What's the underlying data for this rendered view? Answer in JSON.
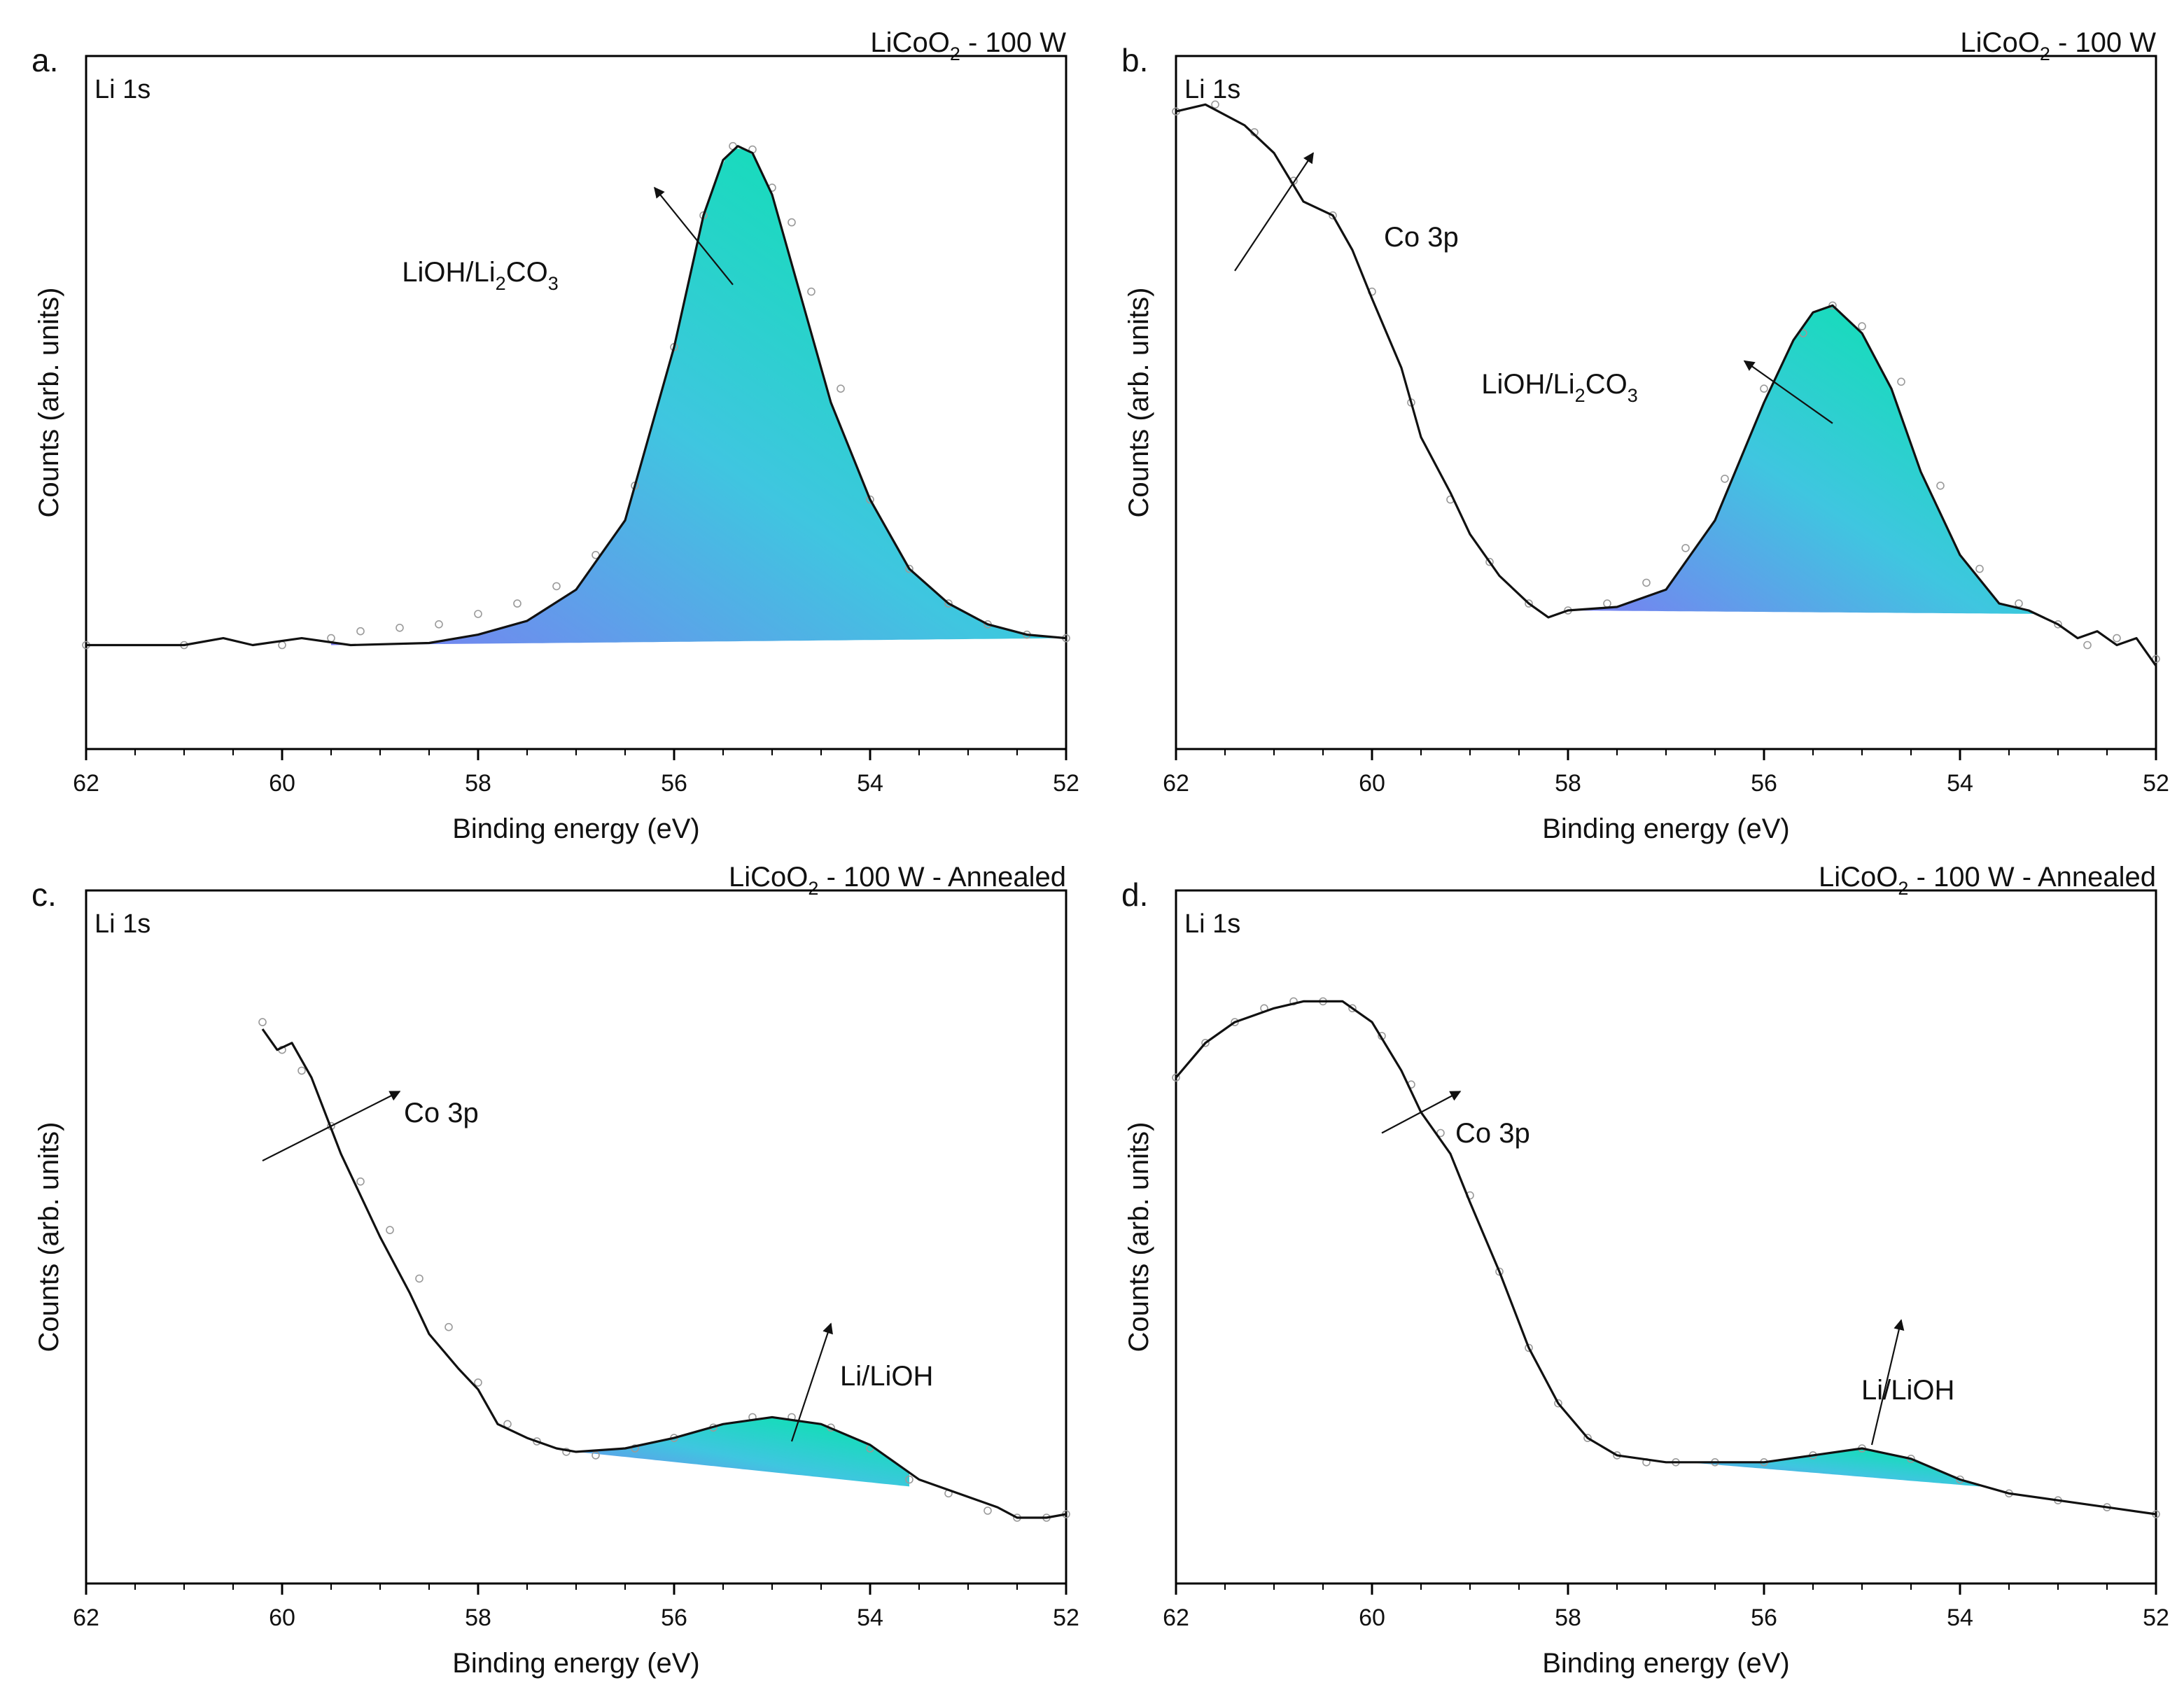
{
  "chart_data": [
    {
      "type": "line",
      "panel_label": "a.",
      "title": {
        "main": "LiCoO",
        "sub": "2",
        "suffix": " - 100 W"
      },
      "corner_label": "Li 1s",
      "xlabel": "Binding energy (eV)",
      "ylabel": "Counts (arb. units)",
      "xlim": [
        62,
        52
      ],
      "ylim": [
        0,
        100
      ],
      "x_ticks": [
        "62",
        "60",
        "58",
        "56",
        "54",
        "52"
      ],
      "envelope": {
        "x": [
          62,
          61,
          60.6,
          60.3,
          59.8,
          59.3,
          58.5,
          58,
          57.5,
          57,
          56.5,
          56,
          55.7,
          55.5,
          55.35,
          55.2,
          55,
          54.7,
          54.4,
          54,
          53.6,
          53.2,
          52.8,
          52.4,
          52
        ],
        "y": [
          15,
          15,
          16,
          15,
          16,
          15,
          15.3,
          16.5,
          18.5,
          23,
          33,
          58,
          77,
          85,
          87,
          86,
          80,
          65,
          50,
          36,
          26,
          21,
          18,
          16.5,
          16
        ]
      },
      "fill_base": {
        "x": [
          59.5,
          52
        ],
        "y": [
          15,
          16
        ]
      },
      "measured_points": {
        "x": [
          62,
          61,
          60,
          59.5,
          59.2,
          58.8,
          58.4,
          58,
          57.6,
          57.2,
          56.8,
          56.4,
          56,
          55.7,
          55.4,
          55.2,
          55,
          54.8,
          54.6,
          54.3,
          54,
          53.6,
          53.2,
          52.8,
          52.4,
          52
        ],
        "y": [
          15,
          15,
          15,
          16,
          17,
          17.5,
          18,
          19.5,
          21,
          23.5,
          28,
          38,
          58,
          77,
          87,
          86.5,
          81,
          76,
          66,
          52,
          36,
          26,
          21,
          18,
          16.5,
          16
        ]
      },
      "annotations": [
        {
          "text": {
            "main": "LiOH/Li",
            "sub": "2",
            "suffix": "CO",
            "sub2": "3"
          },
          "tip": [
            56.2,
            81
          ],
          "tail": [
            55.4,
            67
          ]
        }
      ]
    },
    {
      "type": "line",
      "panel_label": "b.",
      "title": {
        "main": "LiCoO",
        "sub": "2",
        "suffix": " - 100 W"
      },
      "corner_label": "Li 1s",
      "xlabel": "Binding energy (eV)",
      "ylabel": "Counts (arb. units)",
      "xlim": [
        62,
        52
      ],
      "ylim": [
        0,
        100
      ],
      "x_ticks": [
        "62",
        "60",
        "58",
        "56",
        "54",
        "52"
      ],
      "envelope": {
        "x": [
          62,
          61.7,
          61.3,
          61,
          60.7,
          60.4,
          60.2,
          60,
          59.7,
          59.5,
          59.2,
          59,
          58.7,
          58.4,
          58.2,
          58,
          57.5,
          57,
          56.5,
          56,
          55.7,
          55.5,
          55.3,
          55,
          54.7,
          54.4,
          54,
          53.6,
          53.3,
          53,
          52.8,
          52.6,
          52.4,
          52.2,
          52
        ],
        "y": [
          92,
          93,
          90,
          86,
          79,
          77,
          72,
          65,
          55,
          45,
          37,
          31,
          25,
          21,
          19,
          20,
          20.5,
          23,
          33,
          50,
          59,
          63,
          64,
          60,
          52,
          40,
          28,
          21,
          20,
          18,
          16,
          17,
          15,
          16,
          12
        ]
      },
      "fill_base": {
        "x": [
          58,
          53.2
        ],
        "y": [
          20,
          19.5
        ]
      },
      "measured_points": {
        "x": [
          62,
          61.6,
          61.2,
          60.8,
          60.4,
          60,
          59.6,
          59.2,
          58.8,
          58.4,
          58,
          57.6,
          57.2,
          56.8,
          56.4,
          56,
          55.6,
          55.3,
          55,
          54.6,
          54.2,
          53.8,
          53.4,
          53,
          52.7,
          52.4,
          52
        ],
        "y": [
          92,
          93,
          89,
          82,
          77,
          66,
          50,
          36,
          27,
          21,
          20,
          21,
          24,
          29,
          39,
          52,
          60,
          64,
          61,
          53,
          38,
          26,
          21,
          18,
          15,
          16,
          13
        ]
      },
      "annotations": [
        {
          "text": {
            "main": "Co 3p"
          },
          "tip": [
            60.6,
            86
          ],
          "tail": [
            61.4,
            69
          ]
        },
        {
          "text": {
            "main": "LiOH/Li",
            "sub": "2",
            "suffix": "CO",
            "sub2": "3"
          },
          "tip": [
            56.2,
            56
          ],
          "tail": [
            55.3,
            47
          ]
        }
      ]
    },
    {
      "type": "line",
      "panel_label": "c.",
      "title": {
        "main": "LiCoO",
        "sub": "2",
        "suffix": " - 100 W - Annealed"
      },
      "corner_label": "Li 1s",
      "xlabel": "Binding energy (eV)",
      "ylabel": "Counts (arb. units)",
      "xlim": [
        62,
        52
      ],
      "ylim": [
        0,
        100
      ],
      "x_ticks": [
        "62",
        "60",
        "58",
        "56",
        "54",
        "52"
      ],
      "envelope": {
        "x": [
          60.2,
          60.05,
          59.9,
          59.7,
          59.4,
          59,
          58.7,
          58.5,
          58.2,
          58,
          57.8,
          57.5,
          57.2,
          57,
          56.5,
          56,
          55.5,
          55,
          54.5,
          54,
          53.5,
          53,
          52.7,
          52.5,
          52.2,
          52
        ],
        "y": [
          80,
          77,
          78,
          73,
          62,
          50,
          42,
          36,
          31,
          28,
          23,
          21,
          19.5,
          19,
          19.5,
          21,
          23,
          24,
          23,
          20,
          15,
          12.5,
          11,
          9.5,
          9.5,
          10
        ]
      },
      "fill_base": {
        "x": [
          57,
          53.6
        ],
        "y": [
          19,
          14
        ]
      },
      "measured_points": {
        "x": [
          60.2,
          60,
          59.8,
          59.5,
          59.2,
          58.9,
          58.6,
          58.3,
          58,
          57.7,
          57.4,
          57.1,
          56.8,
          56.4,
          56,
          55.6,
          55.2,
          54.8,
          54.4,
          54,
          53.6,
          53.2,
          52.8,
          52.5,
          52.2,
          52
        ],
        "y": [
          81,
          77,
          74,
          66,
          58,
          51,
          44,
          37,
          29,
          23,
          20.5,
          19,
          18.5,
          19.5,
          21,
          22.5,
          24,
          24,
          22.5,
          19.5,
          15,
          13,
          10.5,
          9.5,
          9.5,
          10
        ]
      },
      "annotations": [
        {
          "text": {
            "main": "Co 3p"
          },
          "tip": [
            58.8,
            71
          ],
          "tail": [
            60.2,
            61
          ]
        },
        {
          "text": {
            "main": "Li/LiOH"
          },
          "tip": [
            54.4,
            37.5
          ],
          "tail": [
            54.8,
            20.5
          ]
        }
      ]
    },
    {
      "type": "line",
      "panel_label": "d.",
      "title": {
        "main": "LiCoO",
        "sub": "2",
        "suffix": " - 100 W - Annealed"
      },
      "corner_label": "Li 1s",
      "xlabel": "Binding energy (eV)",
      "ylabel": "Counts (arb. units)",
      "xlim": [
        62,
        52
      ],
      "ylim": [
        0,
        100
      ],
      "x_ticks": [
        "62",
        "60",
        "58",
        "56",
        "54",
        "52"
      ],
      "envelope": {
        "x": [
          62,
          61.7,
          61.4,
          61,
          60.7,
          60.3,
          60,
          59.7,
          59.5,
          59.2,
          59,
          58.7,
          58.4,
          58.1,
          57.8,
          57.5,
          57,
          56.5,
          56,
          55.5,
          55,
          54.5,
          54,
          53.5,
          53,
          52.5,
          52
        ],
        "y": [
          73,
          78,
          81,
          83,
          84,
          84,
          81,
          74,
          68,
          62,
          55,
          45,
          34,
          26,
          21,
          18.5,
          17.5,
          17.5,
          17.5,
          18.5,
          19.5,
          18,
          15,
          13,
          12,
          11,
          10
        ]
      },
      "fill_base": {
        "x": [
          56.8,
          53.8
        ],
        "y": [
          17.5,
          14
        ]
      },
      "measured_points": {
        "x": [
          62,
          61.7,
          61.4,
          61.1,
          60.8,
          60.5,
          60.2,
          59.9,
          59.6,
          59.3,
          59,
          58.7,
          58.4,
          58.1,
          57.8,
          57.5,
          57.2,
          56.9,
          56.5,
          56,
          55.5,
          55,
          54.5,
          54,
          53.5,
          53,
          52.5,
          52
        ],
        "y": [
          73,
          78,
          81,
          83,
          84,
          84,
          83,
          79,
          72,
          65,
          56,
          45,
          34,
          26,
          21,
          18.5,
          17.5,
          17.5,
          17.5,
          17.5,
          18.5,
          19.5,
          18,
          15,
          13,
          12,
          11,
          10
        ]
      },
      "annotations": [
        {
          "text": {
            "main": "Co 3p"
          },
          "tip": [
            59.1,
            71
          ],
          "tail": [
            59.9,
            65
          ]
        },
        {
          "text": {
            "main": "Li/LiOH"
          },
          "tip": [
            54.6,
            38
          ],
          "tail": [
            54.9,
            20
          ]
        }
      ]
    }
  ]
}
